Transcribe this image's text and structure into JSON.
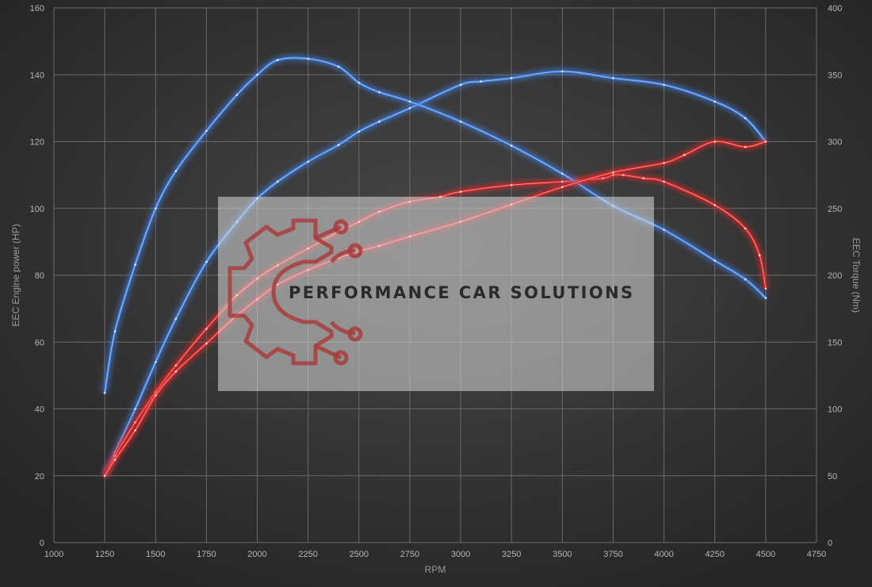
{
  "chart_data": {
    "type": "line",
    "xlabel": "RPM",
    "ylabel_left": "EEC Engine power (HP)",
    "ylabel_right": "EEC Torque (Nm)",
    "xlim": [
      1000,
      4750
    ],
    "ylim_left": [
      0,
      160
    ],
    "ylim_right": [
      0,
      400
    ],
    "x_ticks": [
      1000,
      1250,
      1500,
      1750,
      2000,
      2250,
      2500,
      2750,
      3000,
      3250,
      3500,
      3750,
      4000,
      4250,
      4500,
      4750
    ],
    "y_ticks_left": [
      0,
      20,
      40,
      60,
      80,
      100,
      120,
      140,
      160
    ],
    "y_ticks_right": [
      0,
      50,
      100,
      150,
      200,
      250,
      300,
      350,
      400
    ],
    "grid": true,
    "colors": {
      "tuned": "#3f7fe0",
      "stock": "#e02828",
      "background": "#2e2e2e"
    },
    "series": [
      {
        "color": "tuned",
        "axis": "left",
        "x": [
          1250,
          1300,
          1400,
          1500,
          1600,
          1750,
          1900,
          2000,
          2100,
          2250,
          2400,
          2500,
          2600,
          2750,
          3000,
          3100,
          3250,
          3500,
          3750,
          4000,
          4250,
          4400,
          4500
        ],
        "y": [
          20,
          27,
          40,
          54,
          67,
          84,
          96,
          103,
          108,
          114,
          119,
          123,
          126,
          130,
          137,
          138,
          139,
          141,
          139,
          137,
          132,
          127,
          120
        ]
      },
      {
        "color": "stock",
        "axis": "left",
        "x": [
          1250,
          1300,
          1400,
          1500,
          1600,
          1750,
          1900,
          2000,
          2100,
          2250,
          2400,
          2500,
          2600,
          2750,
          2900,
          3000,
          3250,
          3500,
          3700,
          3750,
          3800,
          3900,
          4000,
          4250,
          4400,
          4470,
          4500
        ],
        "y": [
          20,
          26,
          36,
          45,
          53,
          64,
          74,
          79,
          83,
          88,
          93,
          96,
          99,
          102,
          103.5,
          105,
          107,
          108,
          109,
          110,
          110,
          109,
          108,
          101,
          94,
          86,
          76
        ]
      },
      {
        "color": "tuned",
        "axis": "right",
        "x": [
          1250,
          1300,
          1400,
          1500,
          1600,
          1750,
          1900,
          2000,
          2100,
          2250,
          2400,
          2500,
          2600,
          2750,
          3000,
          3250,
          3500,
          3750,
          4000,
          4250,
          4400,
          4500
        ],
        "y": [
          112,
          158,
          208,
          250,
          278,
          308,
          335,
          350,
          361,
          362,
          356,
          344,
          337,
          330,
          315,
          297,
          276,
          252,
          234,
          211,
          197,
          183
        ]
      },
      {
        "color": "stock",
        "axis": "right",
        "x": [
          1250,
          1300,
          1400,
          1500,
          1600,
          1750,
          1900,
          2000,
          2100,
          2250,
          2400,
          2500,
          2600,
          2750,
          3000,
          3250,
          3500,
          3750,
          4000,
          4100,
          4250,
          4400,
          4500
        ],
        "y": [
          50,
          62,
          84,
          110,
          128,
          149,
          170,
          182,
          193,
          204,
          213,
          218,
          222,
          229,
          240,
          253,
          266,
          277,
          284,
          290,
          300,
          296,
          300
        ]
      }
    ]
  },
  "watermark": {
    "text": "PERFORMANCE CAR SOLUTIONS",
    "logo_icon": "gear-circuit-logo"
  }
}
